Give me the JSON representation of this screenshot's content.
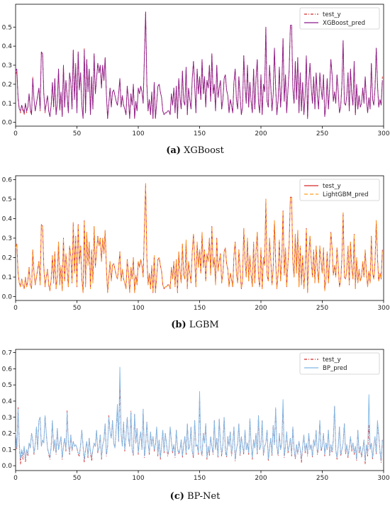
{
  "chart_data": [
    {
      "type": "line",
      "caption_letter": "(a)",
      "caption_text": "XGBoost",
      "xlim": [
        0,
        300
      ],
      "ylim": [
        -0.02,
        0.62
      ],
      "xticks": [
        0,
        50,
        100,
        150,
        200,
        250,
        300
      ],
      "yticks": [
        0.0,
        0.1,
        0.2,
        0.3,
        0.4,
        0.5
      ],
      "legend_position": "top-right",
      "grid": false,
      "series": [
        {
          "name": "test_y",
          "color": "#d62728",
          "style": "dashdot"
        },
        {
          "name": "XGBoost_pred",
          "color": "#8b1a8b",
          "style": "solid"
        }
      ]
    },
    {
      "type": "line",
      "caption_letter": "(b)",
      "caption_text": "LGBM",
      "xlim": [
        0,
        300
      ],
      "ylim": [
        -0.02,
        0.62
      ],
      "xticks": [
        0,
        50,
        100,
        150,
        200,
        250,
        300
      ],
      "yticks": [
        0.0,
        0.1,
        0.2,
        0.3,
        0.4,
        0.5,
        0.6
      ],
      "legend_position": "top-right",
      "grid": false,
      "series": [
        {
          "name": "test_y",
          "color": "#d62728",
          "style": "solid"
        },
        {
          "name": "LightGBM_pred",
          "color": "#ff9f1c",
          "style": "dashed"
        }
      ]
    },
    {
      "type": "line",
      "caption_letter": "(c)",
      "caption_text": "BP-Net",
      "xlim": [
        0,
        300
      ],
      "ylim": [
        -0.03,
        0.72
      ],
      "xticks": [
        0,
        50,
        100,
        150,
        200,
        250,
        300
      ],
      "yticks": [
        0.0,
        0.1,
        0.2,
        0.3,
        0.4,
        0.5,
        0.6,
        0.7
      ],
      "legend_position": "top-right",
      "grid": false,
      "series": [
        {
          "name": "test_y",
          "color": "#d62728",
          "style": "dashdot"
        },
        {
          "name": "BP_pred",
          "color": "#7fb8e6",
          "style": "solid"
        }
      ]
    }
  ],
  "series_values": {
    "test_y_ab": [
      0.25,
      0.27,
      0.12,
      0.07,
      0.05,
      0.09,
      0.06,
      0.04,
      0.1,
      0.05,
      0.08,
      0.15,
      0.06,
      0.04,
      0.24,
      0.12,
      0.06,
      0.1,
      0.14,
      0.18,
      0.06,
      0.37,
      0.36,
      0.15,
      0.05,
      0.1,
      0.14,
      0.06,
      0.03,
      0.09,
      0.21,
      0.07,
      0.23,
      0.04,
      0.1,
      0.28,
      0.06,
      0.16,
      0.03,
      0.3,
      0.08,
      0.22,
      0.14,
      0.05,
      0.26,
      0.21,
      0.07,
      0.38,
      0.12,
      0.31,
      0.05,
      0.37,
      0.17,
      0.26,
      0.09,
      0.02,
      0.39,
      0.05,
      0.33,
      0.16,
      0.28,
      0.04,
      0.24,
      0.07,
      0.36,
      0.15,
      0.23,
      0.31,
      0.26,
      0.3,
      0.18,
      0.3,
      0.22,
      0.34,
      0.15,
      0.02,
      0.1,
      0.18,
      0.08,
      0.16,
      0.17,
      0.14,
      0.11,
      0.09,
      0.15,
      0.23,
      0.08,
      0.14,
      0.09,
      0.07,
      0.04,
      0.19,
      0.12,
      0.02,
      0.15,
      0.09,
      0.2,
      0.02,
      0.11,
      0.06,
      0.18,
      0.15,
      0.19,
      0.16,
      0.1,
      0.35,
      0.58,
      0.2,
      0.06,
      0.12,
      0.04,
      0.16,
      0.02,
      0.21,
      0.02,
      0.1,
      0.19,
      0.2,
      0.16,
      0.13,
      0.06,
      0.04,
      0.05,
      0.05,
      0.06,
      0.06,
      0.04,
      0.15,
      0.09,
      0.18,
      0.05,
      0.19,
      0.02,
      0.23,
      0.13,
      0.07,
      0.27,
      0.11,
      0.09,
      0.29,
      0.04,
      0.18,
      0.12,
      0.07,
      0.23,
      0.32,
      0.19,
      0.05,
      0.28,
      0.15,
      0.24,
      0.12,
      0.33,
      0.15,
      0.24,
      0.08,
      0.22,
      0.18,
      0.3,
      0.11,
      0.36,
      0.15,
      0.2,
      0.06,
      0.3,
      0.13,
      0.18,
      0.22,
      0.07,
      0.12,
      0.23,
      0.25,
      0.17,
      0.14,
      0.05,
      0.12,
      0.09,
      0.05,
      0.21,
      0.28,
      0.12,
      0.07,
      0.24,
      0.14,
      0.04,
      0.08,
      0.35,
      0.19,
      0.1,
      0.3,
      0.08,
      0.21,
      0.11,
      0.05,
      0.28,
      0.07,
      0.23,
      0.33,
      0.1,
      0.05,
      0.25,
      0.04,
      0.2,
      0.16,
      0.5,
      0.11,
      0.08,
      0.3,
      0.19,
      0.06,
      0.15,
      0.39,
      0.18,
      0.04,
      0.12,
      0.29,
      0.08,
      0.19,
      0.44,
      0.11,
      0.25,
      0.05,
      0.17,
      0.27,
      0.51,
      0.51,
      0.18,
      0.1,
      0.32,
      0.12,
      0.34,
      0.05,
      0.26,
      0.06,
      0.21,
      0.04,
      0.14,
      0.35,
      0.02,
      0.21,
      0.31,
      0.18,
      0.1,
      0.24,
      0.07,
      0.26,
      0.14,
      0.07,
      0.26,
      0.18,
      0.12,
      0.25,
      0.03,
      0.09,
      0.23,
      0.07,
      0.18,
      0.33,
      0.25,
      0.11,
      0.16,
      0.1,
      0.25,
      0.16,
      0.05,
      0.08,
      0.2,
      0.43,
      0.1,
      0.09,
      0.14,
      0.26,
      0.06,
      0.28,
      0.15,
      0.09,
      0.32,
      0.04,
      0.2,
      0.07,
      0.14,
      0.08,
      0.1,
      0.18,
      0.1,
      0.24,
      0.12,
      0.05,
      0.13,
      0.07,
      0.31,
      0.12,
      0.09,
      0.18,
      0.39,
      0.2,
      0.08,
      0.12,
      0.09,
      0.24
    ],
    "xgb_pred": [
      0.27,
      0.28,
      0.13,
      0.07,
      0.06,
      0.09,
      0.07,
      0.05,
      0.1,
      0.06,
      0.08,
      0.15,
      0.07,
      0.04,
      0.23,
      0.12,
      0.06,
      0.1,
      0.14,
      0.18,
      0.07,
      0.37,
      0.36,
      0.15,
      0.06,
      0.1,
      0.14,
      0.06,
      0.03,
      0.09,
      0.21,
      0.08,
      0.23,
      0.04,
      0.1,
      0.28,
      0.07,
      0.16,
      0.03,
      0.3,
      0.08,
      0.22,
      0.14,
      0.05,
      0.26,
      0.21,
      0.07,
      0.38,
      0.12,
      0.3,
      0.05,
      0.37,
      0.17,
      0.26,
      0.09,
      0.02,
      0.38,
      0.05,
      0.33,
      0.16,
      0.28,
      0.04,
      0.24,
      0.07,
      0.36,
      0.15,
      0.23,
      0.31,
      0.26,
      0.3,
      0.18,
      0.3,
      0.22,
      0.34,
      0.15,
      0.02,
      0.1,
      0.18,
      0.08,
      0.16,
      0.17,
      0.14,
      0.11,
      0.09,
      0.15,
      0.23,
      0.08,
      0.14,
      0.09,
      0.07,
      0.04,
      0.19,
      0.12,
      0.02,
      0.15,
      0.09,
      0.2,
      0.02,
      0.11,
      0.06,
      0.18,
      0.15,
      0.19,
      0.16,
      0.1,
      0.35,
      0.58,
      0.2,
      0.06,
      0.12,
      0.04,
      0.16,
      0.02,
      0.21,
      0.02,
      0.1,
      0.19,
      0.2,
      0.16,
      0.13,
      0.06,
      0.04,
      0.05,
      0.05,
      0.06,
      0.06,
      0.04,
      0.15,
      0.09,
      0.18,
      0.05,
      0.19,
      0.02,
      0.23,
      0.13,
      0.07,
      0.27,
      0.11,
      0.09,
      0.29,
      0.04,
      0.18,
      0.12,
      0.07,
      0.23,
      0.32,
      0.19,
      0.05,
      0.28,
      0.15,
      0.24,
      0.12,
      0.33,
      0.15,
      0.24,
      0.08,
      0.22,
      0.18,
      0.3,
      0.11,
      0.36,
      0.15,
      0.2,
      0.06,
      0.3,
      0.13,
      0.18,
      0.22,
      0.07,
      0.12,
      0.23,
      0.25,
      0.17,
      0.14,
      0.05,
      0.12,
      0.09,
      0.05,
      0.21,
      0.28,
      0.12,
      0.07,
      0.24,
      0.14,
      0.04,
      0.08,
      0.35,
      0.19,
      0.1,
      0.3,
      0.08,
      0.21,
      0.11,
      0.05,
      0.28,
      0.07,
      0.23,
      0.33,
      0.1,
      0.05,
      0.25,
      0.04,
      0.2,
      0.16,
      0.5,
      0.11,
      0.08,
      0.3,
      0.19,
      0.06,
      0.15,
      0.39,
      0.18,
      0.04,
      0.12,
      0.29,
      0.08,
      0.19,
      0.44,
      0.11,
      0.25,
      0.05,
      0.17,
      0.27,
      0.51,
      0.51,
      0.18,
      0.1,
      0.32,
      0.12,
      0.34,
      0.05,
      0.26,
      0.06,
      0.21,
      0.04,
      0.14,
      0.35,
      0.02,
      0.21,
      0.31,
      0.18,
      0.1,
      0.24,
      0.07,
      0.26,
      0.14,
      0.07,
      0.26,
      0.18,
      0.12,
      0.25,
      0.03,
      0.09,
      0.23,
      0.07,
      0.18,
      0.33,
      0.25,
      0.11,
      0.16,
      0.1,
      0.25,
      0.16,
      0.05,
      0.08,
      0.2,
      0.43,
      0.1,
      0.09,
      0.14,
      0.26,
      0.06,
      0.28,
      0.15,
      0.09,
      0.32,
      0.04,
      0.2,
      0.07,
      0.14,
      0.08,
      0.1,
      0.18,
      0.1,
      0.24,
      0.12,
      0.05,
      0.13,
      0.07,
      0.31,
      0.12,
      0.09,
      0.18,
      0.39,
      0.2,
      0.08,
      0.12,
      0.09,
      0.22
    ],
    "test_y_c": [
      0.2,
      0.1,
      0.36,
      0.13,
      0.01,
      0.09,
      0.04,
      0.12,
      0.02,
      0.1,
      0.06,
      0.14,
      0.11,
      0.2,
      0.16,
      0.07,
      0.13,
      0.24,
      0.1,
      0.28,
      0.3,
      0.12,
      0.16,
      0.14,
      0.31,
      0.2,
      0.11,
      0.07,
      0.04,
      0.12,
      0.28,
      0.09,
      0.16,
      0.07,
      0.23,
      0.1,
      0.14,
      0.18,
      0.04,
      0.12,
      0.17,
      0.09,
      0.34,
      0.14,
      0.07,
      0.19,
      0.09,
      0.15,
      0.12,
      0.13,
      0.11,
      0.07,
      0.06,
      0.13,
      0.22,
      0.12,
      0.02,
      0.1,
      0.15,
      0.05,
      0.17,
      0.08,
      0.03,
      0.1,
      0.14,
      0.12,
      0.22,
      0.08,
      0.11,
      0.19,
      0.04,
      0.13,
      0.16,
      0.26,
      0.06,
      0.12,
      0.31,
      0.21,
      0.17,
      0.28,
      0.14,
      0.11,
      0.23,
      0.34,
      0.15,
      0.5,
      0.2,
      0.12,
      0.27,
      0.09,
      0.18,
      0.3,
      0.17,
      0.12,
      0.34,
      0.1,
      0.06,
      0.32,
      0.14,
      0.23,
      0.07,
      0.16,
      0.21,
      0.1,
      0.35,
      0.05,
      0.12,
      0.27,
      0.14,
      0.07,
      0.21,
      0.12,
      0.18,
      0.09,
      0.13,
      0.24,
      0.06,
      0.16,
      0.04,
      0.12,
      0.22,
      0.08,
      0.2,
      0.14,
      0.06,
      0.1,
      0.24,
      0.15,
      0.08,
      0.13,
      0.05,
      0.22,
      0.11,
      0.07,
      0.1,
      0.16,
      0.05,
      0.13,
      0.18,
      0.07,
      0.26,
      0.1,
      0.12,
      0.24,
      0.08,
      0.05,
      0.28,
      0.12,
      0.13,
      0.07,
      0.43,
      0.1,
      0.06,
      0.2,
      0.14,
      0.26,
      0.04,
      0.12,
      0.06,
      0.18,
      0.12,
      0.07,
      0.28,
      0.1,
      0.17,
      0.05,
      0.29,
      0.14,
      0.06,
      0.13,
      0.3,
      0.09,
      0.05,
      0.18,
      0.12,
      0.21,
      0.06,
      0.13,
      0.24,
      0.03,
      0.1,
      0.14,
      0.26,
      0.06,
      0.18,
      0.12,
      0.07,
      0.22,
      0.1,
      0.14,
      0.07,
      0.29,
      0.13,
      0.04,
      0.16,
      0.11,
      0.2,
      0.07,
      0.31,
      0.1,
      0.13,
      0.28,
      0.06,
      0.12,
      0.14,
      0.22,
      0.03,
      0.11,
      0.17,
      0.06,
      0.25,
      0.13,
      0.35,
      0.12,
      0.06,
      0.2,
      0.1,
      0.14,
      0.37,
      0.05,
      0.12,
      0.21,
      0.08,
      0.12,
      0.17,
      0.06,
      0.24,
      0.1,
      0.04,
      0.13,
      0.07,
      0.15,
      0.1,
      0.02,
      0.12,
      0.19,
      0.08,
      0.14,
      0.06,
      0.2,
      0.1,
      0.13,
      0.05,
      0.16,
      0.12,
      0.22,
      0.07,
      0.11,
      0.28,
      0.09,
      0.12,
      0.2,
      0.06,
      0.14,
      0.1,
      0.22,
      0.06,
      0.13,
      0.08,
      0.16,
      0.37,
      0.1,
      0.04,
      0.12,
      0.24,
      0.06,
      0.1,
      0.14,
      0.26,
      0.07,
      0.13,
      0.05,
      0.11,
      0.18,
      0.09,
      0.14,
      0.07,
      0.12,
      0.03,
      0.22,
      0.08,
      0.12,
      0.05,
      0.1,
      0.16,
      0.01,
      0.13,
      0.06,
      0.25,
      0.1,
      0.14,
      0.04,
      0.12,
      0.18,
      0.07,
      0.24,
      0.19,
      0.09,
      0.02,
      0.16
    ],
    "bp_pred": [
      0.21,
      0.11,
      0.35,
      0.14,
      0.04,
      0.1,
      0.06,
      0.12,
      0.04,
      0.1,
      0.07,
      0.14,
      0.11,
      0.2,
      0.16,
      0.08,
      0.13,
      0.24,
      0.1,
      0.28,
      0.3,
      0.12,
      0.16,
      0.14,
      0.31,
      0.2,
      0.11,
      0.08,
      0.05,
      0.12,
      0.28,
      0.1,
      0.16,
      0.08,
      0.23,
      0.1,
      0.14,
      0.18,
      0.05,
      0.12,
      0.17,
      0.1,
      0.33,
      0.14,
      0.08,
      0.19,
      0.1,
      0.15,
      0.12,
      0.13,
      0.11,
      0.08,
      0.07,
      0.13,
      0.22,
      0.12,
      0.04,
      0.1,
      0.15,
      0.06,
      0.17,
      0.09,
      0.05,
      0.1,
      0.14,
      0.12,
      0.22,
      0.09,
      0.11,
      0.19,
      0.05,
      0.13,
      0.16,
      0.26,
      0.07,
      0.12,
      0.3,
      0.21,
      0.17,
      0.28,
      0.14,
      0.11,
      0.23,
      0.38,
      0.15,
      0.61,
      0.2,
      0.12,
      0.27,
      0.1,
      0.18,
      0.3,
      0.17,
      0.12,
      0.33,
      0.1,
      0.07,
      0.32,
      0.14,
      0.23,
      0.08,
      0.16,
      0.21,
      0.1,
      0.35,
      0.06,
      0.12,
      0.27,
      0.14,
      0.08,
      0.21,
      0.12,
      0.18,
      0.1,
      0.13,
      0.24,
      0.07,
      0.16,
      0.05,
      0.12,
      0.22,
      0.09,
      0.2,
      0.14,
      0.07,
      0.1,
      0.24,
      0.15,
      0.09,
      0.13,
      0.06,
      0.22,
      0.11,
      0.08,
      0.1,
      0.16,
      0.06,
      0.13,
      0.18,
      0.08,
      0.26,
      0.1,
      0.12,
      0.24,
      0.09,
      0.06,
      0.28,
      0.12,
      0.13,
      0.08,
      0.46,
      0.1,
      0.07,
      0.2,
      0.14,
      0.26,
      0.05,
      0.12,
      0.07,
      0.18,
      0.12,
      0.08,
      0.28,
      0.1,
      0.17,
      0.06,
      0.29,
      0.14,
      0.07,
      0.13,
      0.3,
      0.1,
      0.06,
      0.18,
      0.12,
      0.21,
      0.07,
      0.13,
      0.24,
      0.04,
      0.1,
      0.14,
      0.26,
      0.07,
      0.18,
      0.12,
      0.08,
      0.22,
      0.1,
      0.14,
      0.08,
      0.29,
      0.13,
      0.05,
      0.16,
      0.11,
      0.2,
      0.08,
      0.31,
      0.1,
      0.13,
      0.28,
      0.07,
      0.12,
      0.14,
      0.22,
      0.04,
      0.11,
      0.17,
      0.07,
      0.25,
      0.13,
      0.36,
      0.12,
      0.07,
      0.2,
      0.1,
      0.14,
      0.41,
      0.06,
      0.12,
      0.21,
      0.09,
      0.12,
      0.17,
      0.07,
      0.24,
      0.1,
      0.05,
      0.13,
      0.08,
      0.15,
      0.1,
      0.04,
      0.12,
      0.19,
      0.09,
      0.14,
      0.07,
      0.2,
      0.1,
      0.13,
      0.06,
      0.16,
      0.12,
      0.22,
      0.08,
      0.11,
      0.28,
      0.1,
      0.12,
      0.2,
      0.07,
      0.14,
      0.1,
      0.22,
      0.07,
      0.13,
      0.09,
      0.16,
      0.37,
      0.1,
      0.05,
      0.12,
      0.24,
      0.07,
      0.1,
      0.14,
      0.26,
      0.08,
      0.13,
      0.06,
      0.11,
      0.18,
      0.1,
      0.14,
      0.08,
      0.12,
      0.04,
      0.22,
      0.09,
      0.12,
      0.06,
      0.1,
      0.16,
      0.03,
      0.13,
      0.07,
      0.44,
      0.1,
      0.14,
      0.05,
      0.12,
      0.18,
      0.08,
      0.28,
      0.19,
      0.1,
      0.03,
      0.16
    ]
  }
}
